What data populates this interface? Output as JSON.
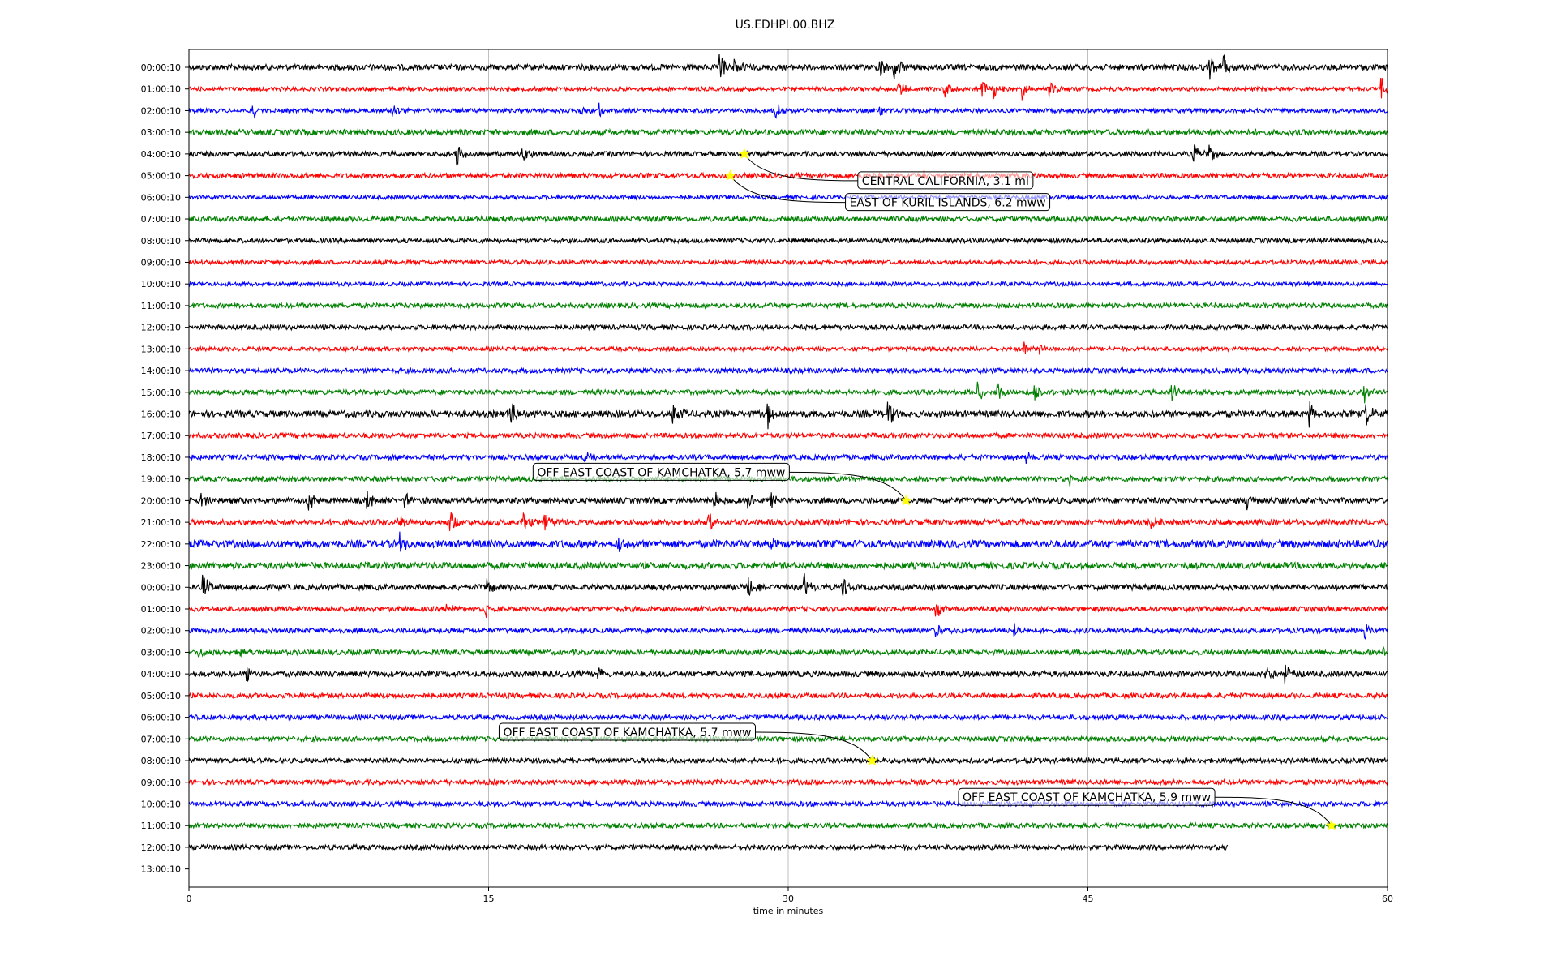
{
  "chart_data": {
    "type": "line",
    "title": "US.EDHPI.00.BHZ",
    "xlabel": "time in minutes",
    "ylabel": "",
    "xlim": [
      0,
      60
    ],
    "x_ticks": [
      0,
      15,
      30,
      45,
      60
    ],
    "grid": "vertical",
    "trace_colors": [
      "#000000",
      "#ff0000",
      "#0000ff",
      "#008000"
    ],
    "row_labels": [
      "00:00:10",
      "01:00:10",
      "02:00:10",
      "03:00:10",
      "04:00:10",
      "05:00:10",
      "06:00:10",
      "07:00:10",
      "08:00:10",
      "09:00:10",
      "10:00:10",
      "11:00:10",
      "12:00:10",
      "13:00:10",
      "14:00:10",
      "15:00:10",
      "16:00:10",
      "17:00:10",
      "18:00:10",
      "19:00:10",
      "20:00:10",
      "21:00:10",
      "22:00:10",
      "23:00:10",
      "00:00:10",
      "01:00:10",
      "02:00:10",
      "03:00:10",
      "04:00:10",
      "05:00:10",
      "06:00:10",
      "07:00:10",
      "08:00:10",
      "09:00:10",
      "10:00:10",
      "11:00:10",
      "12:00:10",
      "13:00:10"
    ],
    "trace_end_minutes": [
      60,
      60,
      60,
      60,
      60,
      60,
      60,
      60,
      60,
      60,
      60,
      60,
      60,
      60,
      60,
      60,
      60,
      60,
      60,
      60,
      60,
      60,
      60,
      60,
      60,
      60,
      60,
      60,
      60,
      60,
      60,
      60,
      60,
      60,
      60,
      60,
      52,
      0
    ],
    "noise_level": [
      0.35,
      0.25,
      0.25,
      0.35,
      0.3,
      0.3,
      0.25,
      0.3,
      0.28,
      0.25,
      0.25,
      0.3,
      0.3,
      0.25,
      0.3,
      0.3,
      0.4,
      0.3,
      0.3,
      0.3,
      0.35,
      0.35,
      0.45,
      0.4,
      0.35,
      0.3,
      0.3,
      0.3,
      0.35,
      0.3,
      0.3,
      0.3,
      0.3,
      0.3,
      0.3,
      0.3,
      0.3,
      0
    ],
    "bursts": [
      {
        "row": 0,
        "minutes": [
          26.6,
          27.3,
          34.6,
          35.3,
          51.1,
          51.8
        ],
        "amp": 1.6
      },
      {
        "row": 1,
        "minutes": [
          35.5,
          37.8,
          39.7,
          40.3,
          41.7,
          43.1,
          59.7
        ],
        "amp": 1.3
      },
      {
        "row": 2,
        "minutes": [
          3.2,
          10.2,
          19.6,
          20.5,
          29.4,
          34.6
        ],
        "amp": 1.0
      },
      {
        "row": 4,
        "minutes": [
          13.4,
          16.7,
          50.3,
          51.0
        ],
        "amp": 1.6
      },
      {
        "row": 5,
        "minutes": [
          36.8
        ],
        "amp": 0.6
      },
      {
        "row": 13,
        "minutes": [
          41.8,
          42.6
        ],
        "amp": 0.9
      },
      {
        "row": 15,
        "minutes": [
          39.5,
          40.5,
          42.3,
          49.2,
          58.8
        ],
        "amp": 1.3
      },
      {
        "row": 16,
        "minutes": [
          16.1,
          24.2,
          29.0,
          35.0,
          56.1,
          58.9
        ],
        "amp": 1.7
      },
      {
        "row": 18,
        "minutes": [
          19.8,
          41.9
        ],
        "amp": 0.6
      },
      {
        "row": 19,
        "minutes": [
          44.1
        ],
        "amp": 0.7
      },
      {
        "row": 20,
        "minutes": [
          0.6,
          6.0,
          8.9,
          10.8,
          26.3,
          28.0,
          29.1,
          53.0
        ],
        "amp": 1.3
      },
      {
        "row": 21,
        "minutes": [
          10.5,
          13.1,
          16.7,
          17.8,
          26.0,
          48.2
        ],
        "amp": 1.3
      },
      {
        "row": 22,
        "minutes": [
          10.6,
          21.5,
          29.1
        ],
        "amp": 1.2
      },
      {
        "row": 24,
        "minutes": [
          0.7,
          14.9,
          28.0,
          30.8,
          32.7
        ],
        "amp": 1.6
      },
      {
        "row": 25,
        "minutes": [
          12.9,
          14.8,
          37.4
        ],
        "amp": 1.1
      },
      {
        "row": 26,
        "minutes": [
          37.4,
          41.3,
          58.9
        ],
        "amp": 0.9
      },
      {
        "row": 27,
        "minutes": [
          0.5,
          2.5,
          59.8
        ],
        "amp": 0.8
      },
      {
        "row": 28,
        "minutes": [
          2.9,
          20.5,
          53.8,
          54.9
        ],
        "amp": 1.4
      }
    ],
    "events": [
      {
        "label": "CENTRAL CALIFORNIA, 3.1 ml",
        "row": 4,
        "minute": 27.8
      },
      {
        "label": "EAST OF KURIL ISLANDS, 6.2 mww",
        "row": 5,
        "minute": 27.1
      },
      {
        "label": "OFF EAST COAST OF KAMCHATKA, 5.7 mww",
        "row": 20,
        "minute": 35.9
      },
      {
        "label": "OFF EAST COAST OF KAMCHATKA, 5.7 mww",
        "row": 32,
        "minute": 34.2
      },
      {
        "label": "OFF EAST COAST OF KAMCHATKA, 5.9 mww",
        "row": 35,
        "minute": 57.2
      }
    ]
  }
}
